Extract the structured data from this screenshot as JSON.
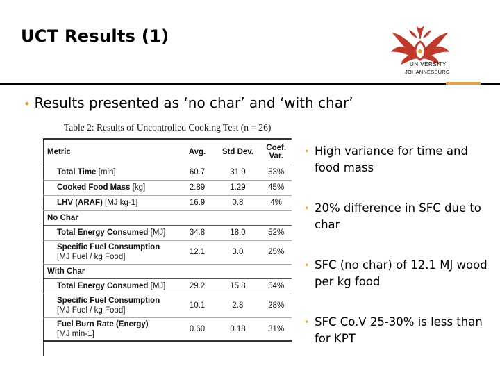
{
  "title": "UCT Results (1)",
  "logo": {
    "line1": "UNIVERSITY",
    "line2": "JOHANNESBURG",
    "accent_color": "#e8a33a",
    "logo_color": "#c0392b"
  },
  "main_bullet": "Results presented as ‘no char’ and ‘with char’",
  "table": {
    "caption": "Table 2: Results of Uncontrolled Cooking Test (n = 26)",
    "headers": [
      "Metric",
      "Avg.",
      "Std Dev.",
      "Coef. Var."
    ],
    "rows": [
      {
        "metric": "Total Time",
        "unit": "[min]",
        "avg": "60.7",
        "sd": "31.9",
        "cov": "53%"
      },
      {
        "metric": "Cooked Food Mass",
        "unit": "[kg]",
        "avg": "2.89",
        "sd": "1.29",
        "cov": "45%"
      },
      {
        "metric": "LHV (ARAF)",
        "unit": "[MJ kg-1]",
        "avg": "16.9",
        "sd": "0.8",
        "cov": "4%"
      }
    ],
    "section_no_char": "No Char",
    "no_char_rows": [
      {
        "metric": "Total Energy Consumed",
        "unit": "[MJ]",
        "avg": "34.8",
        "sd": "18.0",
        "cov": "52%"
      },
      {
        "metric": "Specific Fuel Consumption",
        "unit": "[MJ Fuel / kg Food]",
        "avg": "12.1",
        "sd": "3.0",
        "cov": "25%"
      }
    ],
    "section_with_char": "With Char",
    "with_char_rows": [
      {
        "metric": "Total Energy Consumed",
        "unit": "[MJ]",
        "avg": "29.2",
        "sd": "15.8",
        "cov": "54%"
      },
      {
        "metric": "Specific Fuel Consumption",
        "unit": "[MJ Fuel / kg Food]",
        "avg": "10.1",
        "sd": "2.8",
        "cov": "28%"
      },
      {
        "metric": "Fuel Burn Rate (Energy)",
        "unit": "[MJ min-1]",
        "avg": "0.60",
        "sd": "0.18",
        "cov": "31%"
      }
    ]
  },
  "side_bullets": [
    "High variance for time and food mass",
    "20% difference in SFC due to char",
    "SFC (no char) of 12.1 MJ wood per kg food",
    "SFC Co.V 25-30% is less than for KPT"
  ]
}
